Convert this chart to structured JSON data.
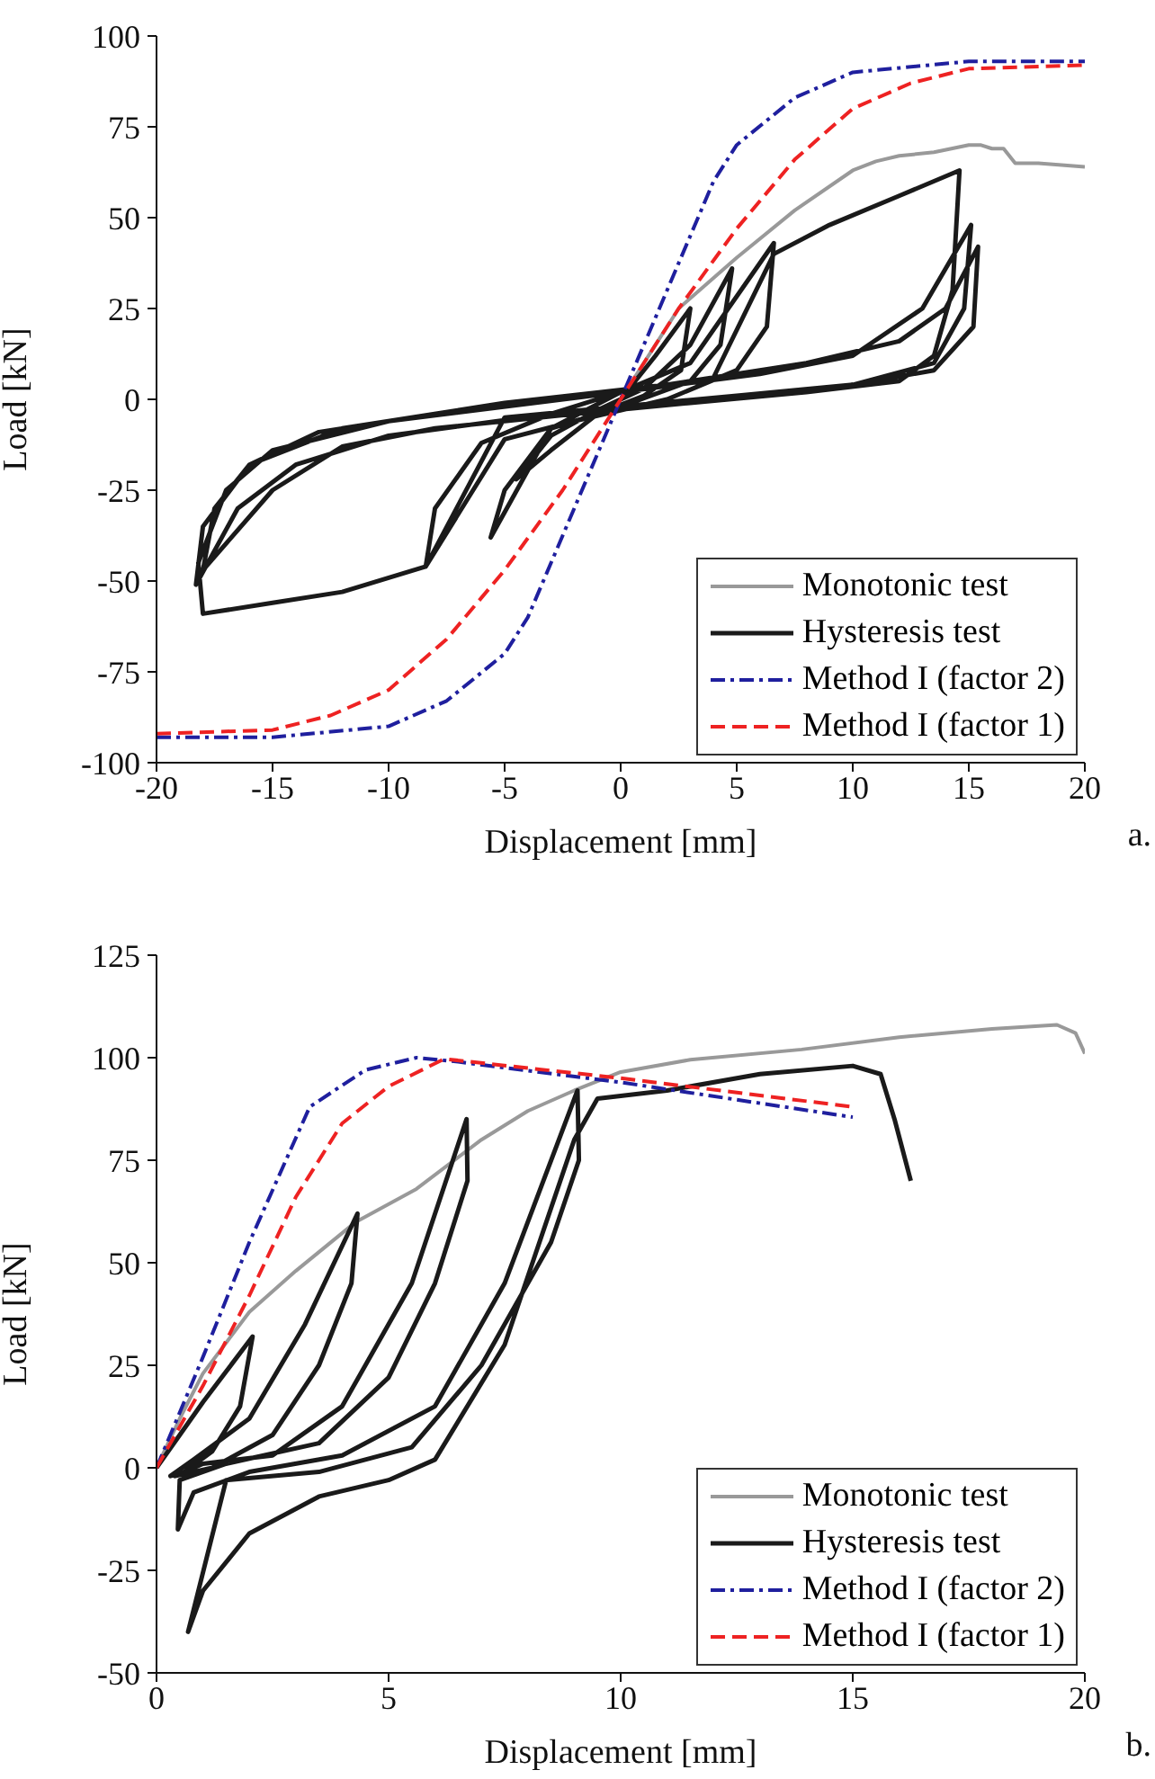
{
  "chart_data": [
    {
      "type": "line",
      "xlabel": "Displacement [mm]",
      "ylabel": "Load [kN]",
      "xlim": [
        -20,
        20
      ],
      "xticks": [
        -20,
        -15,
        -10,
        -5,
        0,
        5,
        10,
        15,
        20
      ],
      "ylim": [
        -100,
        100
      ],
      "yticks": [
        -100,
        -75,
        -50,
        -25,
        0,
        25,
        50,
        75,
        100
      ],
      "grid": false,
      "legend": "bottom right",
      "marker": "none",
      "annotations": [
        "a."
      ],
      "series": [
        {
          "name": "Monotonic test",
          "color": "#999999",
          "line_style": "solid",
          "x": [
            0,
            1,
            2.5,
            5,
            7.5,
            10,
            11,
            12,
            13.5,
            15,
            15.5,
            16,
            16.5,
            17,
            18,
            20
          ],
          "values": [
            0,
            10,
            25,
            39,
            52,
            63,
            65.5,
            67,
            68,
            70,
            70,
            69,
            69,
            65,
            65,
            64
          ]
        },
        {
          "name": "Hysteresis test",
          "color": "#1a1a1a",
          "line_style": "solid",
          "x": [
            0,
            1.5,
            3,
            2.6,
            1,
            -1,
            -3,
            -4.5,
            -3,
            -1,
            1,
            3,
            4.8,
            4.3,
            3,
            0,
            -3,
            -5.6,
            -5,
            -3,
            0,
            3,
            6.6,
            6.3,
            5,
            2,
            -2,
            -5,
            -8.4,
            -8,
            -6,
            -3,
            0,
            4,
            6.6,
            9,
            12,
            14.6,
            14.3,
            13.5,
            12,
            8,
            3,
            -2,
            -8,
            -12,
            -15,
            -18,
            -17.5,
            -16,
            -13,
            -8,
            0,
            6,
            10,
            13,
            15.1,
            14.8,
            13.5,
            10,
            4,
            -3,
            -10,
            -14,
            -16.5,
            -18.3,
            -18,
            -16,
            -12,
            -5,
            2,
            8,
            12,
            14,
            15.4,
            15.2,
            13.5,
            10,
            5,
            0,
            -5,
            -8.4,
            -12,
            -15,
            -18,
            -18.2,
            -17,
            -15,
            -10,
            0
          ],
          "values": [
            0,
            12,
            25,
            8,
            1,
            -4,
            -14,
            -22,
            -10,
            -3,
            3,
            15,
            36,
            15,
            5,
            -2,
            -8,
            -38,
            -25,
            -8,
            2,
            10,
            43,
            20,
            8,
            0,
            -6,
            -11,
            -46,
            -30,
            -12,
            -4,
            2,
            6,
            40,
            48,
            56,
            63,
            30,
            12,
            5,
            2,
            -1,
            -4,
            -8,
            -13,
            -25,
            -47,
            -30,
            -18,
            -9,
            -4,
            2,
            7,
            12,
            25,
            48,
            25,
            10,
            4,
            0,
            -4,
            -10,
            -18,
            -30,
            -51,
            -35,
            -18,
            -8,
            -1,
            4,
            10,
            16,
            25,
            42,
            20,
            8,
            4,
            1,
            -2,
            -5,
            -46,
            -53,
            -56,
            -59,
            -45,
            -25,
            -14,
            -6,
            2
          ]
        },
        {
          "name": "Method I (factor 2)",
          "color": "#1f1f9e",
          "line_style": "dashdot",
          "x": [
            -20,
            -15,
            -10,
            -7.5,
            -5,
            -4,
            -3,
            -2,
            -1,
            0,
            1,
            2,
            3,
            4,
            5,
            7.5,
            10,
            15,
            20
          ],
          "values": [
            -93,
            -93,
            -90,
            -83,
            -70,
            -60,
            -45,
            -30,
            -15,
            0,
            15,
            30,
            45,
            60,
            70,
            83,
            90,
            93,
            93
          ]
        },
        {
          "name": "Method I (factor 1)",
          "color": "#ee2222",
          "line_style": "dashed",
          "x": [
            -20,
            -15,
            -12.5,
            -10,
            -7.5,
            -5,
            -2.5,
            0,
            2.5,
            5,
            7.5,
            10,
            12.5,
            15,
            20
          ],
          "values": [
            -92,
            -91,
            -87,
            -80,
            -66,
            -47,
            -25,
            0,
            25,
            47,
            66,
            80,
            87,
            91,
            92
          ]
        }
      ]
    },
    {
      "type": "line",
      "xlabel": "Displacement [mm]",
      "ylabel": "Load [kN]",
      "xlim": [
        0,
        20
      ],
      "xticks": [
        0,
        5,
        10,
        15,
        20
      ],
      "ylim": [
        -50,
        125
      ],
      "yticks": [
        -50,
        -25,
        0,
        25,
        50,
        75,
        100,
        125
      ],
      "grid": false,
      "legend": "bottom right",
      "marker": "none",
      "annotations": [
        "b."
      ],
      "series": [
        {
          "name": "Monotonic test",
          "color": "#999999",
          "line_style": "solid",
          "x": [
            0,
            0.5,
            1,
            2,
            3,
            4.3,
            5.6,
            7,
            8,
            9,
            10,
            11.5,
            13.9,
            16,
            18,
            19.4,
            19.8,
            20
          ],
          "values": [
            0,
            12,
            23,
            38,
            48,
            60,
            68,
            80,
            87,
            92,
            96.5,
            99.5,
            102,
            105,
            107,
            108,
            106,
            101
          ]
        },
        {
          "name": "Hysteresis test",
          "color": "#1a1a1a",
          "line_style": "solid",
          "x": [
            0,
            0.5,
            1,
            2.07,
            1.8,
            1.2,
            0.6,
            0.3,
            0.8,
            2,
            3.2,
            4.33,
            4.2,
            3.5,
            2.5,
            1.2,
            0.4,
            1,
            2.5,
            4,
            5.5,
            6.68,
            6.7,
            6,
            5,
            3.5,
            1.5,
            0.5,
            0.46,
            0.8,
            2,
            4,
            6,
            7.5,
            9.07,
            9.1,
            8.5,
            7,
            5.5,
            3.5,
            1.5,
            0.68,
            1,
            2,
            3.5,
            5,
            6,
            7.5,
            9,
            9.5,
            11,
            13,
            15,
            15.6,
            15.9,
            16.25
          ],
          "values": [
            0,
            8,
            16,
            32,
            15,
            4,
            -1,
            -2,
            2,
            12,
            35,
            62,
            45,
            25,
            8,
            0,
            -2,
            1,
            3,
            15,
            45,
            85,
            70,
            45,
            22,
            6,
            1,
            -3,
            -15,
            -6,
            -1,
            3,
            15,
            45,
            92,
            75,
            55,
            25,
            5,
            -1,
            -3,
            -40,
            -30,
            -16,
            -7,
            -3,
            2,
            30,
            80,
            90,
            92,
            96,
            98,
            96,
            85,
            70
          ]
        },
        {
          "name": "Method I (factor 2)",
          "color": "#1f1f9e",
          "line_style": "dashdot",
          "x": [
            0,
            1,
            2,
            3.3,
            4.5,
            5.6,
            6.5,
            10,
            15
          ],
          "values": [
            0,
            27,
            55,
            88,
            97,
            100,
            99,
            94,
            85.5
          ]
        },
        {
          "name": "Method I (factor 1)",
          "color": "#ee2222",
          "line_style": "dashed",
          "x": [
            0,
            1,
            2,
            3,
            4,
            5,
            6.2,
            10,
            15
          ],
          "values": [
            0,
            20,
            42,
            66,
            84,
            93,
            99.7,
            95,
            88
          ]
        }
      ]
    }
  ]
}
